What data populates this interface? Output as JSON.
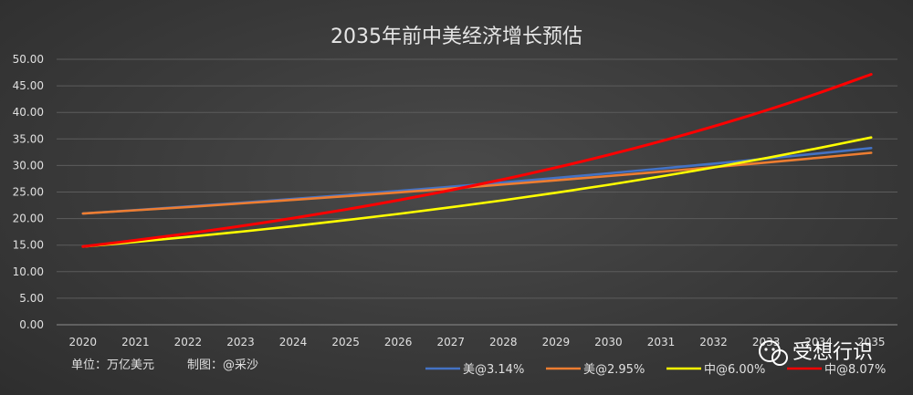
{
  "chart_data": {
    "type": "line",
    "title": "2035年前中美经济增长预估",
    "categories": [
      "2020",
      "2021",
      "2022",
      "2023",
      "2024",
      "2025",
      "2026",
      "2027",
      "2028",
      "2029",
      "2030",
      "2031",
      "2032",
      "2033",
      "2034",
      "2035"
    ],
    "ylim": [
      0,
      50
    ],
    "yticks": [
      "0.00",
      "5.00",
      "10.00",
      "15.00",
      "20.00",
      "25.00",
      "30.00",
      "35.00",
      "40.00",
      "45.00",
      "50.00"
    ],
    "grid": true,
    "legend_position": "bottom-right",
    "series": [
      {
        "name": "美@3.14%",
        "color": "#4472c4",
        "values": [
          20.94,
          21.6,
          22.28,
          22.98,
          23.7,
          24.44,
          25.21,
          26.0,
          26.81,
          27.65,
          28.52,
          29.42,
          30.34,
          31.29,
          32.27,
          33.28
        ]
      },
      {
        "name": "美@2.95%",
        "color": "#ed7d31",
        "values": [
          20.94,
          21.56,
          22.19,
          22.85,
          23.52,
          24.21,
          24.93,
          25.66,
          26.42,
          27.2,
          28.0,
          28.83,
          29.68,
          30.55,
          31.46,
          32.38
        ]
      },
      {
        "name": "中@6.00%",
        "color": "#ffff00",
        "values": [
          14.72,
          15.6,
          16.54,
          17.53,
          18.58,
          19.7,
          20.88,
          22.13,
          23.46,
          24.87,
          26.36,
          27.94,
          29.62,
          31.4,
          33.28,
          35.28
        ]
      },
      {
        "name": "中@8.07%",
        "color": "#ff0000",
        "values": [
          14.72,
          15.91,
          17.19,
          18.58,
          20.08,
          21.7,
          23.45,
          25.34,
          27.39,
          29.6,
          31.99,
          34.57,
          37.36,
          40.38,
          43.64,
          47.16
        ]
      }
    ]
  },
  "footer": {
    "unit_label": "单位：万亿美元",
    "maker_label": "制图：@采沙"
  },
  "watermark": {
    "text": "受想行识",
    "icon": "wechat-icon"
  }
}
